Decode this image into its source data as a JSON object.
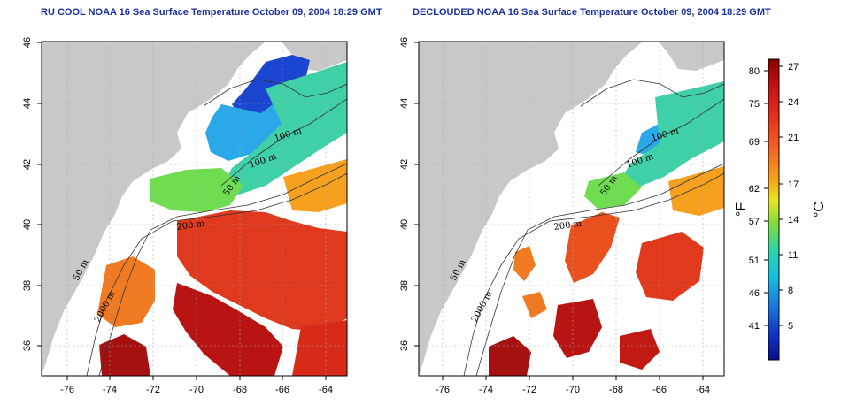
{
  "panels": [
    {
      "title": "RU COOL NOAA 16 Sea Surface Temperature October 09, 2004 18:29 GMT",
      "contour_labels": [
        "100 m",
        "100 m",
        "50 m",
        "200 m",
        "50 m",
        "2000 m"
      ]
    },
    {
      "title": "DECLOUDED NOAA 16 Sea Surface Temperature October 09, 2004 18:29 GMT",
      "contour_labels": [
        "100 m",
        "100 m",
        "50 m",
        "200 m",
        "50 m",
        "2000 m"
      ]
    }
  ],
  "axes": {
    "lon_ticks": [
      "-76",
      "-74",
      "-72",
      "-70",
      "-68",
      "-66",
      "-64"
    ],
    "lat_ticks": [
      "46",
      "44",
      "42",
      "40",
      "38",
      "36"
    ]
  },
  "colorbar": {
    "fahrenheit_unit": "°F",
    "celsius_unit": "°C",
    "fahrenheit_ticks": [
      "80",
      "75",
      "69",
      "62",
      "57",
      "51",
      "46",
      "41"
    ],
    "celsius_ticks": [
      "27",
      "24",
      "21",
      "17",
      "14",
      "11",
      "8",
      "5"
    ],
    "colors": [
      "#8b0000",
      "#d71e1e",
      "#f26522",
      "#f7a21b",
      "#e8e622",
      "#7ddc3f",
      "#2ed6a3",
      "#16c0e0",
      "#1a78e0",
      "#1030c0",
      "#0b0f8f"
    ]
  },
  "colors": {
    "land": "#c8c8c8",
    "title": "#1a2fa0"
  }
}
